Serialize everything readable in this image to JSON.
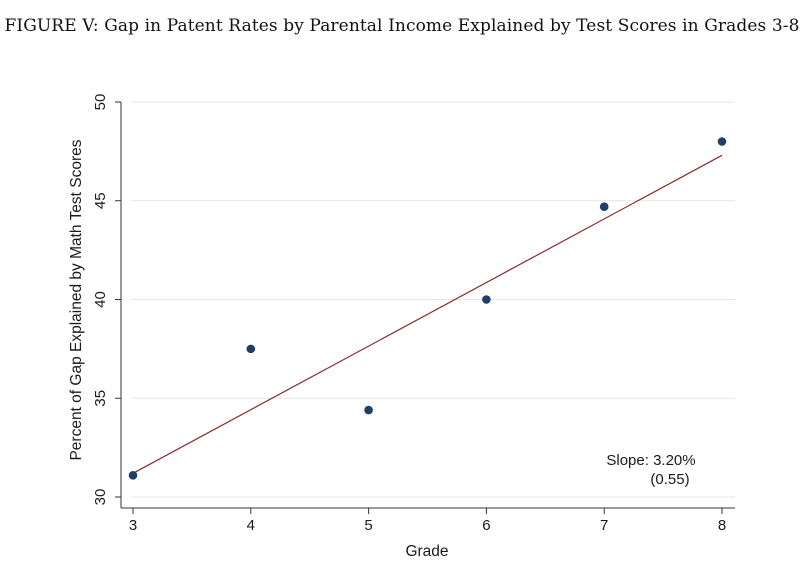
{
  "figure": {
    "title": "FIGURE V: Gap in Patent Rates by Parental Income Explained by Test Scores in Grades 3-8"
  },
  "chart_data": {
    "type": "scatter",
    "title": "FIGURE V: Gap in Patent Rates by Parental Income Explained by Test Scores in Grades 3-8",
    "xlabel": "Grade",
    "ylabel": "Percent of Gap Explained by Math Test Scores",
    "xlim": [
      3,
      8
    ],
    "ylim": [
      30,
      50
    ],
    "xticks": [
      3,
      4,
      5,
      6,
      7,
      8
    ],
    "yticks": [
      30,
      35,
      40,
      45,
      50
    ],
    "grid": true,
    "x": [
      3,
      4,
      5,
      6,
      7,
      8
    ],
    "y": [
      31.1,
      37.5,
      34.4,
      40.0,
      44.7,
      48.0
    ],
    "fit_line": {
      "x": [
        3,
        8
      ],
      "y": [
        31.2,
        47.3
      ]
    },
    "annotation": {
      "slope_label": "Slope: 3.20%",
      "se_label": "(0.55)"
    },
    "colors": {
      "points": "#1f3f66",
      "fit": "#8b2a2a",
      "grid": "#e6e6e6",
      "axis": "#333333"
    }
  }
}
